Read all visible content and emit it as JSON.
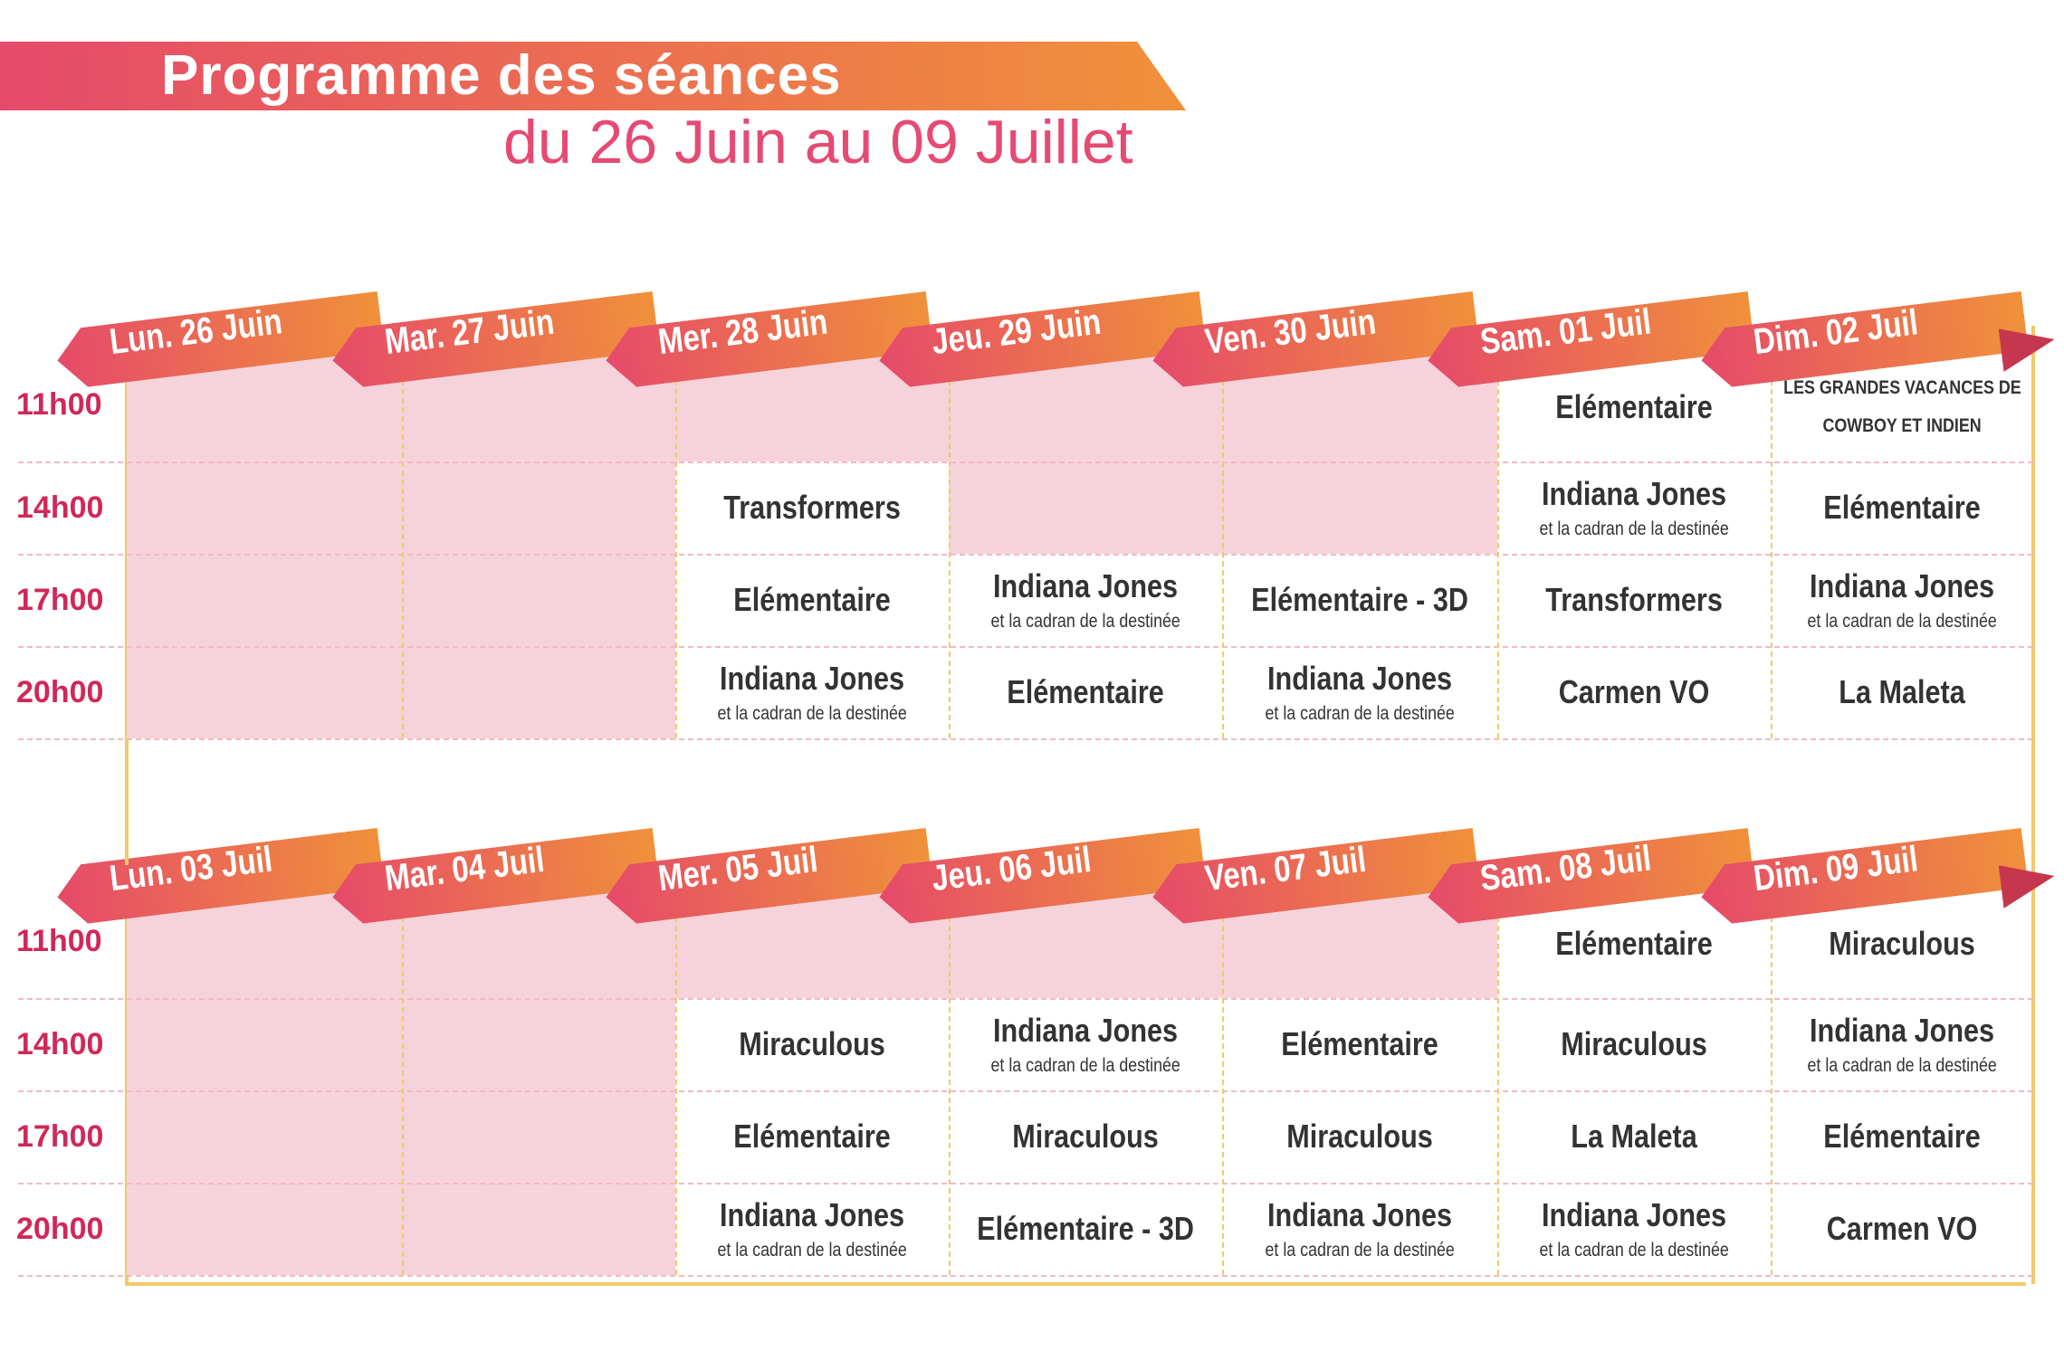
{
  "header": {
    "title": "Programme des séances",
    "subtitle": "du 26 Juin au 09 Juillet"
  },
  "colors": {
    "banner_start": "#e64a6a",
    "banner_end": "#f0913a",
    "accent_pink": "#e64a72",
    "time_red": "#d02858",
    "empty_cell": "#f6d3da",
    "grid_gold": "#f2c96b",
    "text_dark": "#333333"
  },
  "times": [
    "11h00",
    "14h00",
    "17h00",
    "20h00"
  ],
  "weeks": [
    {
      "days": [
        "Lun. 26 Juin",
        "Mar. 27 Juin",
        "Mer. 28 Juin",
        "Jeu. 29 Juin",
        "Ven. 30 Juin",
        "Sam. 01 Juil",
        "Dim. 02 Juil"
      ],
      "cells": [
        [
          "",
          "",
          "",
          "",
          "",
          "Elémentaire",
          "LES GRANDES VACANCES DE|COWBOY ET INDIEN"
        ],
        [
          "",
          "",
          "Transformers",
          "",
          "",
          "Indiana Jones*et la cadran de la destinée",
          "Elémentaire"
        ],
        [
          "",
          "",
          "Elémentaire",
          "Indiana Jones*et la cadran de la destinée",
          "Elémentaire - 3D",
          "Transformers",
          "Indiana Jones*et la cadran de la destinée"
        ],
        [
          "",
          "",
          "Indiana Jones*et la cadran de la destinée",
          "Elémentaire",
          "Indiana Jones*et la cadran de la destinée",
          "Carmen VO",
          "La Maleta"
        ]
      ]
    },
    {
      "days": [
        "Lun. 03 Juil",
        "Mar. 04 Juil",
        "Mer. 05 Juil",
        "Jeu. 06 Juil",
        "Ven. 07 Juil",
        "Sam. 08 Juil",
        "Dim. 09 Juil"
      ],
      "cells": [
        [
          "",
          "",
          "",
          "",
          "",
          "Elémentaire",
          "Miraculous"
        ],
        [
          "",
          "",
          "Miraculous",
          "Indiana Jones*et la cadran de la destinée",
          "Elémentaire",
          "Miraculous",
          "Indiana Jones*et la cadran de la destinée"
        ],
        [
          "",
          "",
          "Elémentaire",
          "Miraculous",
          "Miraculous",
          "La Maleta",
          "Elémentaire"
        ],
        [
          "",
          "",
          "Indiana Jones*et la cadran de la destinée",
          "Elémentaire - 3D",
          "Indiana Jones*et la cadran de la destinée",
          "Indiana Jones*et la cadran de la destinée",
          "Carmen VO"
        ]
      ]
    }
  ]
}
